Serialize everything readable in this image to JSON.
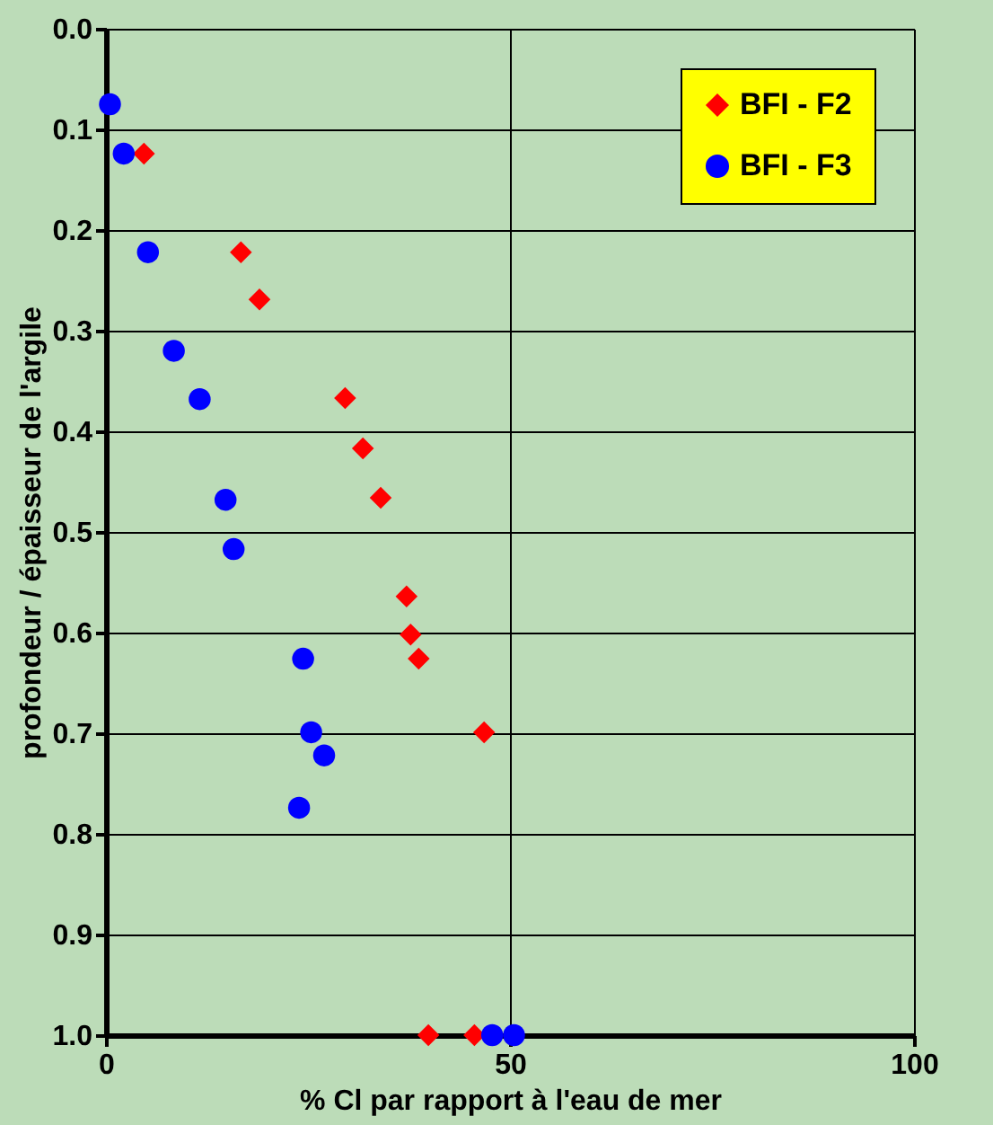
{
  "chart_data": {
    "type": "scatter",
    "xlabel": "% Cl par rapport à l'eau de mer",
    "ylabel": "profondeur / épaisseur de l'argile",
    "xlim": [
      0,
      100
    ],
    "xticks": [
      0,
      50,
      100
    ],
    "ylim": [
      1.0,
      0.0
    ],
    "yticks": [
      {
        "value": 0,
        "label": "0.0"
      },
      0.1,
      0.2,
      0.3,
      0.4,
      0.5,
      0.6,
      0.7,
      0.8,
      0.9,
      {
        "value": 1,
        "label": "1.0"
      }
    ],
    "grid": true,
    "legend": "top right",
    "series": [
      {
        "name": "BFI - F2",
        "color": "#ff0000",
        "marker": "diamond",
        "x": [
          4.7,
          16.7,
          19,
          29.6,
          31.8,
          34,
          37.2,
          37.7,
          38.7,
          46.8,
          39.9,
          45.6
        ],
        "values": [
          0.124,
          0.222,
          0.269,
          0.367,
          0.417,
          0.466,
          0.564,
          0.602,
          0.626,
          0.699,
          1.0,
          1.0
        ]
      },
      {
        "name": "BFI - F3",
        "color": "#0000ff",
        "marker": "circle",
        "x": [
          0.5,
          2.2,
          5.2,
          8.4,
          11.6,
          14.8,
          15.8,
          24.4,
          25.4,
          27,
          23.9,
          47.8,
          50.5
        ],
        "values": [
          0.075,
          0.124,
          0.222,
          0.32,
          0.368,
          0.468,
          0.517,
          0.626,
          0.699,
          0.722,
          0.774,
          1.0,
          1.0
        ]
      }
    ]
  }
}
